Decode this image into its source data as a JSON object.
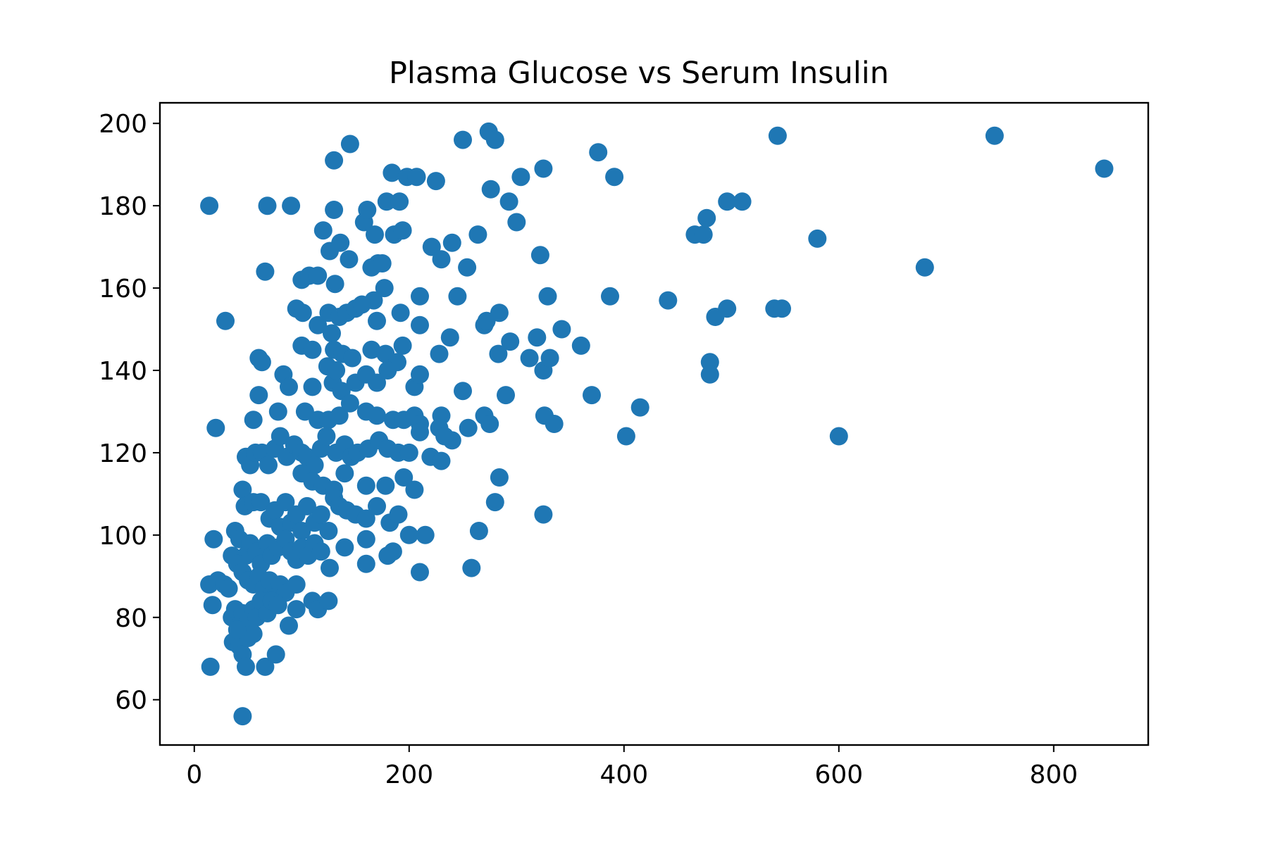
{
  "chart_data": {
    "type": "scatter",
    "title": "Plasma Glucose vs Serum Insulin",
    "xlabel": "",
    "ylabel": "",
    "xlim": [
      -32,
      888
    ],
    "ylim": [
      49,
      205
    ],
    "x_ticks": [
      0,
      200,
      400,
      600,
      800
    ],
    "y_ticks": [
      60,
      80,
      100,
      120,
      140,
      160,
      180,
      200
    ],
    "x_tick_labels": [
      "0",
      "200",
      "400",
      "600",
      "800"
    ],
    "y_tick_labels": [
      "60",
      "80",
      "100",
      "120",
      "140",
      "160",
      "180",
      "200"
    ],
    "grid": false,
    "color": "#1f77b4",
    "points": [
      [
        14,
        180
      ],
      [
        68,
        180
      ],
      [
        90,
        180
      ],
      [
        130,
        191
      ],
      [
        145,
        195
      ],
      [
        184,
        188
      ],
      [
        198,
        187
      ],
      [
        207,
        187
      ],
      [
        225,
        186
      ],
      [
        250,
        196
      ],
      [
        274,
        198
      ],
      [
        280,
        196
      ],
      [
        325,
        189
      ],
      [
        304,
        187
      ],
      [
        276,
        184
      ],
      [
        293,
        181
      ],
      [
        300,
        176
      ],
      [
        376,
        193
      ],
      [
        391,
        187
      ],
      [
        543,
        197
      ],
      [
        745,
        197
      ],
      [
        847,
        189
      ],
      [
        29,
        152
      ],
      [
        66,
        164
      ],
      [
        20,
        126
      ],
      [
        18,
        99
      ],
      [
        14,
        88
      ],
      [
        17,
        83
      ],
      [
        15,
        68
      ],
      [
        45,
        56
      ],
      [
        22,
        89
      ],
      [
        28,
        88
      ],
      [
        32,
        87
      ],
      [
        120,
        174
      ],
      [
        126,
        169
      ],
      [
        136,
        171
      ],
      [
        144,
        167
      ],
      [
        130,
        179
      ],
      [
        158,
        176
      ],
      [
        161,
        179
      ],
      [
        168,
        173
      ],
      [
        179,
        181
      ],
      [
        191,
        181
      ],
      [
        186,
        173
      ],
      [
        194,
        174
      ],
      [
        171,
        166
      ],
      [
        165,
        165
      ],
      [
        175,
        166
      ],
      [
        177,
        160
      ],
      [
        167,
        157
      ],
      [
        221,
        170
      ],
      [
        230,
        167
      ],
      [
        240,
        171
      ],
      [
        264,
        173
      ],
      [
        254,
        165
      ],
      [
        245,
        158
      ],
      [
        210,
        158
      ],
      [
        322,
        168
      ],
      [
        329,
        158
      ],
      [
        387,
        158
      ],
      [
        441,
        157
      ],
      [
        466,
        173
      ],
      [
        474,
        173
      ],
      [
        477,
        177
      ],
      [
        496,
        181
      ],
      [
        510,
        181
      ],
      [
        580,
        172
      ],
      [
        680,
        165
      ],
      [
        100,
        162
      ],
      [
        107,
        163
      ],
      [
        115,
        163
      ],
      [
        131,
        161
      ],
      [
        95,
        155
      ],
      [
        101,
        154
      ],
      [
        115,
        151
      ],
      [
        125,
        154
      ],
      [
        135,
        153
      ],
      [
        142,
        154
      ],
      [
        150,
        155
      ],
      [
        156,
        156
      ],
      [
        170,
        152
      ],
      [
        192,
        154
      ],
      [
        210,
        151
      ],
      [
        238,
        148
      ],
      [
        270,
        151
      ],
      [
        272,
        152
      ],
      [
        284,
        154
      ],
      [
        294,
        147
      ],
      [
        319,
        148
      ],
      [
        342,
        150
      ],
      [
        360,
        146
      ],
      [
        485,
        153
      ],
      [
        496,
        155
      ],
      [
        540,
        155
      ],
      [
        547,
        155
      ],
      [
        60,
        143
      ],
      [
        63,
        142
      ],
      [
        100,
        146
      ],
      [
        110,
        145
      ],
      [
        128,
        149
      ],
      [
        130,
        145
      ],
      [
        138,
        144
      ],
      [
        147,
        143
      ],
      [
        165,
        145
      ],
      [
        178,
        144
      ],
      [
        189,
        142
      ],
      [
        194,
        146
      ],
      [
        228,
        144
      ],
      [
        283,
        144
      ],
      [
        312,
        143
      ],
      [
        325,
        140
      ],
      [
        331,
        143
      ],
      [
        480,
        142
      ],
      [
        480,
        139
      ],
      [
        60,
        134
      ],
      [
        83,
        139
      ],
      [
        88,
        136
      ],
      [
        110,
        136
      ],
      [
        78,
        130
      ],
      [
        103,
        130
      ],
      [
        124,
        141
      ],
      [
        129,
        137
      ],
      [
        132,
        140
      ],
      [
        137,
        135
      ],
      [
        150,
        137
      ],
      [
        160,
        139
      ],
      [
        170,
        137
      ],
      [
        180,
        140
      ],
      [
        205,
        136
      ],
      [
        210,
        139
      ],
      [
        250,
        135
      ],
      [
        290,
        134
      ],
      [
        370,
        134
      ],
      [
        55,
        128
      ],
      [
        115,
        128
      ],
      [
        125,
        128
      ],
      [
        135,
        129
      ],
      [
        145,
        132
      ],
      [
        160,
        130
      ],
      [
        170,
        129
      ],
      [
        185,
        128
      ],
      [
        195,
        128
      ],
      [
        205,
        129
      ],
      [
        210,
        127
      ],
      [
        230,
        129
      ],
      [
        255,
        126
      ],
      [
        270,
        129
      ],
      [
        275,
        127
      ],
      [
        326,
        129
      ],
      [
        335,
        127
      ],
      [
        415,
        131
      ],
      [
        402,
        124
      ],
      [
        600,
        124
      ],
      [
        48,
        119
      ],
      [
        52,
        117
      ],
      [
        57,
        120
      ],
      [
        63,
        120
      ],
      [
        69,
        117
      ],
      [
        75,
        121
      ],
      [
        80,
        124
      ],
      [
        86,
        119
      ],
      [
        93,
        122
      ],
      [
        100,
        120
      ],
      [
        105,
        119
      ],
      [
        112,
        117
      ],
      [
        118,
        121
      ],
      [
        123,
        124
      ],
      [
        132,
        120
      ],
      [
        140,
        122
      ],
      [
        146,
        119
      ],
      [
        152,
        120
      ],
      [
        162,
        121
      ],
      [
        172,
        123
      ],
      [
        180,
        121
      ],
      [
        190,
        120
      ],
      [
        200,
        120
      ],
      [
        210,
        125
      ],
      [
        220,
        119
      ],
      [
        230,
        118
      ],
      [
        240,
        123
      ],
      [
        100,
        115
      ],
      [
        110,
        113
      ],
      [
        120,
        112
      ],
      [
        130,
        111
      ],
      [
        140,
        115
      ],
      [
        160,
        112
      ],
      [
        178,
        112
      ],
      [
        195,
        114
      ],
      [
        205,
        111
      ],
      [
        228,
        126
      ],
      [
        233,
        124
      ],
      [
        45,
        111
      ],
      [
        47,
        107
      ],
      [
        55,
        108
      ],
      [
        62,
        108
      ],
      [
        70,
        104
      ],
      [
        75,
        106
      ],
      [
        80,
        102
      ],
      [
        85,
        108
      ],
      [
        90,
        103
      ],
      [
        95,
        105
      ],
      [
        100,
        101
      ],
      [
        105,
        107
      ],
      [
        112,
        103
      ],
      [
        118,
        105
      ],
      [
        125,
        101
      ],
      [
        130,
        109
      ],
      [
        135,
        107
      ],
      [
        142,
        106
      ],
      [
        150,
        105
      ],
      [
        160,
        104
      ],
      [
        170,
        107
      ],
      [
        182,
        103
      ],
      [
        190,
        105
      ],
      [
        200,
        100
      ],
      [
        215,
        100
      ],
      [
        280,
        108
      ],
      [
        284,
        114
      ],
      [
        325,
        105
      ],
      [
        265,
        101
      ],
      [
        38,
        101
      ],
      [
        42,
        99
      ],
      [
        48,
        95
      ],
      [
        52,
        98
      ],
      [
        58,
        96
      ],
      [
        62,
        93
      ],
      [
        68,
        98
      ],
      [
        72,
        95
      ],
      [
        78,
        97
      ],
      [
        85,
        99
      ],
      [
        90,
        96
      ],
      [
        95,
        94
      ],
      [
        100,
        97
      ],
      [
        106,
        95
      ],
      [
        112,
        98
      ],
      [
        118,
        96
      ],
      [
        126,
        92
      ],
      [
        140,
        97
      ],
      [
        160,
        99
      ],
      [
        185,
        96
      ],
      [
        35,
        95
      ],
      [
        40,
        93
      ],
      [
        45,
        91
      ],
      [
        50,
        89
      ],
      [
        55,
        88
      ],
      [
        60,
        90
      ],
      [
        65,
        87
      ],
      [
        70,
        89
      ],
      [
        75,
        85
      ],
      [
        80,
        88
      ],
      [
        85,
        86
      ],
      [
        95,
        88
      ],
      [
        160,
        93
      ],
      [
        180,
        95
      ],
      [
        210,
        91
      ],
      [
        258,
        92
      ],
      [
        35,
        80
      ],
      [
        38,
        82
      ],
      [
        42,
        78
      ],
      [
        45,
        81
      ],
      [
        50,
        79
      ],
      [
        55,
        82
      ],
      [
        58,
        80
      ],
      [
        62,
        84
      ],
      [
        68,
        81
      ],
      [
        72,
        84
      ],
      [
        78,
        83
      ],
      [
        88,
        78
      ],
      [
        95,
        82
      ],
      [
        110,
        84
      ],
      [
        115,
        82
      ],
      [
        125,
        84
      ],
      [
        36,
        74
      ],
      [
        42,
        73
      ],
      [
        45,
        71
      ],
      [
        50,
        75
      ],
      [
        55,
        76
      ],
      [
        48,
        68
      ],
      [
        66,
        68
      ],
      [
        76,
        71
      ],
      [
        40,
        77
      ]
    ]
  }
}
